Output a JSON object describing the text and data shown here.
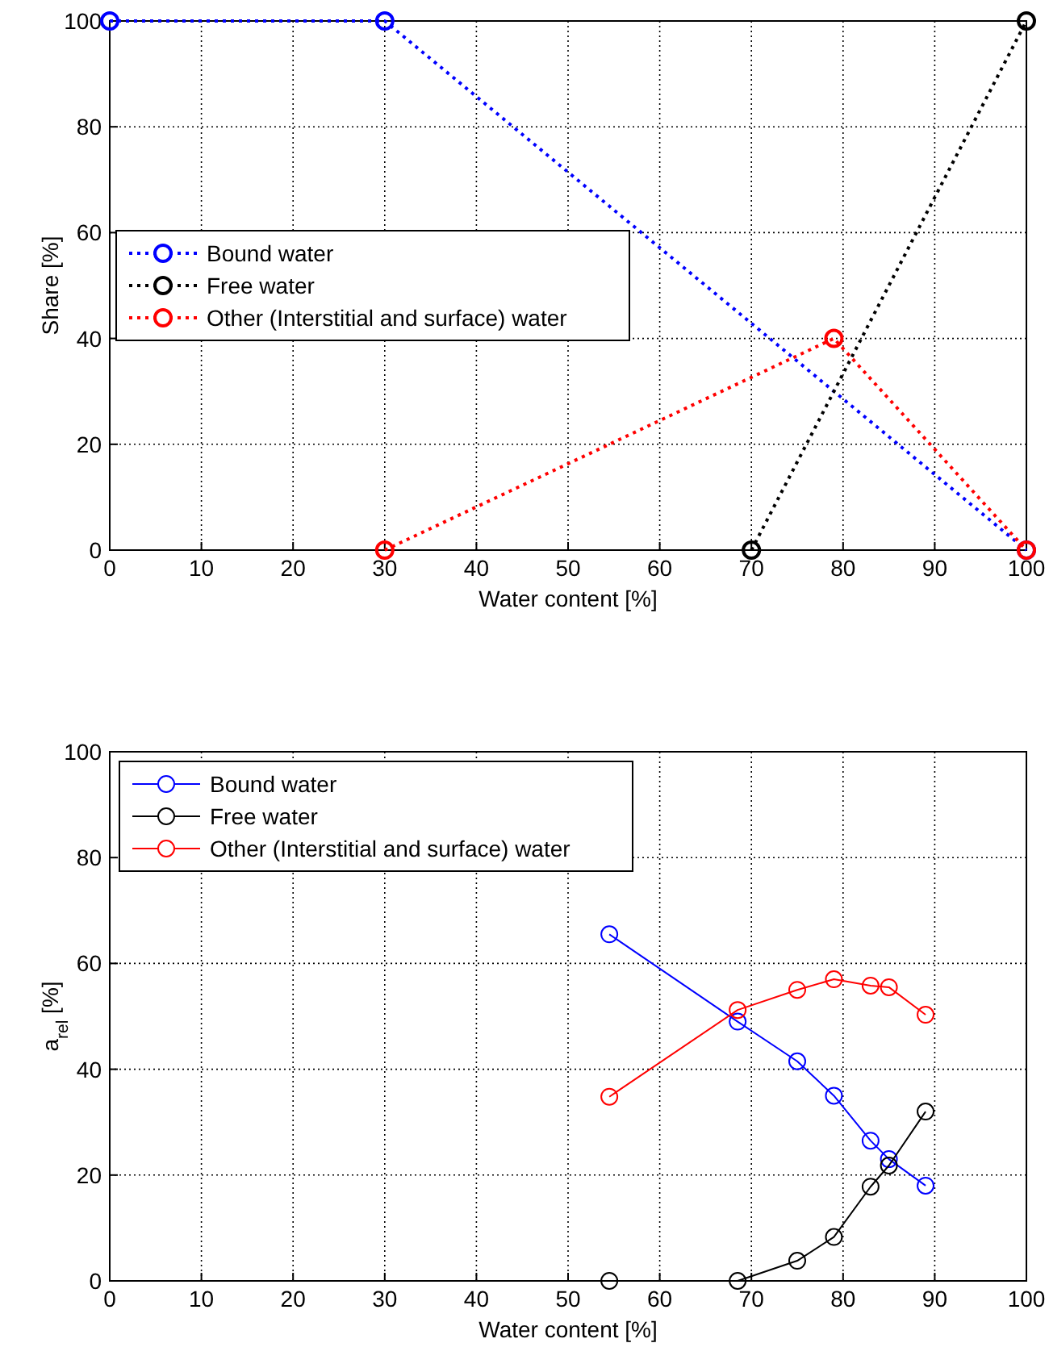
{
  "chart_data": [
    {
      "type": "line",
      "xlabel": "Water content [%]",
      "ylabel": "Share [%]",
      "xlim": [
        0,
        100
      ],
      "ylim": [
        0,
        100
      ],
      "xticks": [
        0,
        10,
        20,
        30,
        40,
        50,
        60,
        70,
        80,
        90,
        100
      ],
      "yticks": [
        0,
        20,
        40,
        60,
        80,
        100
      ],
      "grid": true,
      "legend": "left",
      "marker": "circle",
      "line_style": "dotted",
      "series": [
        {
          "name": "Bound water",
          "color": "#0000ff",
          "x": [
            0,
            30,
            100
          ],
          "values": [
            100,
            100,
            0
          ]
        },
        {
          "name": "Free water",
          "color": "#000000",
          "x": [
            70,
            100
          ],
          "values": [
            0,
            100
          ]
        },
        {
          "name": "Other (Interstitial and surface) water",
          "color": "#ff0000",
          "x": [
            30,
            79,
            100
          ],
          "values": [
            0,
            40,
            0
          ]
        }
      ]
    },
    {
      "type": "line",
      "xlabel": "Water content [%]",
      "ylabel": "a$_{rel}$ [%]",
      "xlim": [
        0,
        100
      ],
      "ylim": [
        0,
        100
      ],
      "xticks": [
        0,
        10,
        20,
        30,
        40,
        50,
        60,
        70,
        80,
        90,
        100
      ],
      "yticks": [
        0,
        20,
        40,
        60,
        80,
        100
      ],
      "grid": true,
      "legend": "top left",
      "marker": "circle",
      "line_style": "solid",
      "series": [
        {
          "name": "Bound water",
          "color": "#0000ff",
          "x": [
            54.5,
            68.5,
            75,
            79,
            83,
            85,
            89
          ],
          "values": [
            65.5,
            49,
            41.5,
            35,
            26.5,
            23,
            18
          ]
        },
        {
          "name": "Free water",
          "color": "#000000",
          "x": [
            54.5,
            68.5,
            75,
            79,
            83,
            85,
            89
          ],
          "values": [
            0,
            0,
            3.8,
            8.3,
            17.8,
            21.8,
            32
          ]
        },
        {
          "name": "Other (Interstitial and surface) water",
          "color": "#ff0000",
          "x": [
            54.5,
            68.5,
            75,
            79,
            83,
            85,
            89
          ],
          "values": [
            34.8,
            51.2,
            55,
            57,
            55.8,
            55.5,
            50.3
          ]
        }
      ]
    }
  ]
}
